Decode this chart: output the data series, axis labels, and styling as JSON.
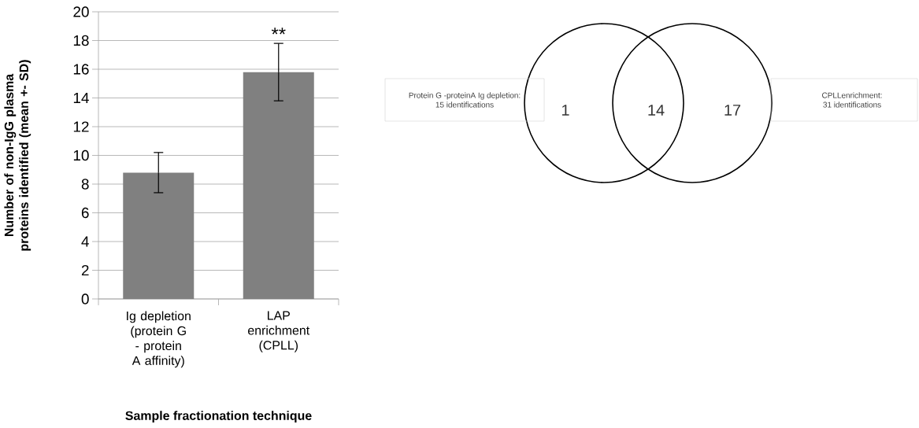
{
  "chart_data": [
    {
      "type": "bar",
      "categories": [
        "Ig depletion (protein G - protein A affinity)",
        "LAP enrichment (CPLL)"
      ],
      "values": [
        8.8,
        15.8
      ],
      "errors": [
        1.4,
        2.0
      ],
      "color": "#808080",
      "xlabel": "Sample fractionation technique",
      "ylabel": "Number of non-IgG plasma proteins identified (mean +- SD)",
      "ylim": [
        0,
        20
      ],
      "yticks": [
        0,
        2,
        4,
        6,
        8,
        10,
        12,
        14,
        16,
        18,
        20
      ],
      "grid": "y",
      "annotations": [
        {
          "text": "**",
          "x": "LAP enrichment (CPLL)",
          "y": 17.8
        }
      ]
    },
    {
      "type": "other",
      "values": [
        1,
        14,
        17
      ],
      "data_labels": true,
      "annotations": [
        "Protein G -proteinA Ig depletion:",
        "15 identifications",
        "CPLLenrichment:",
        "31 identifications"
      ]
    }
  ]
}
